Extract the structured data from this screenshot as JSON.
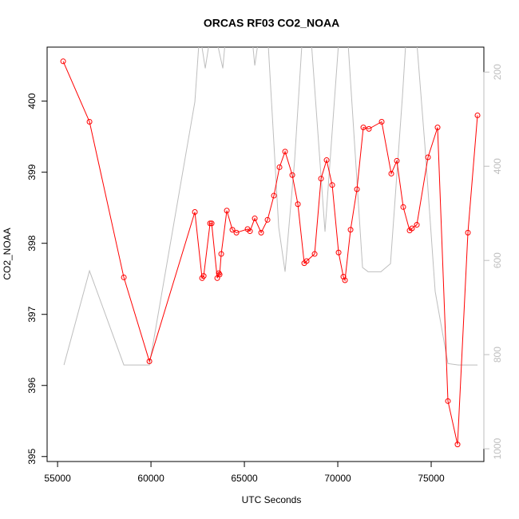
{
  "chart_data": {
    "type": "line",
    "title": "ORCAS RF03 CO2_NOAA",
    "x_label": "UTC Seconds",
    "y_label": "CO2_NOAA",
    "xlim": [
      54440,
      77820
    ],
    "ylim": [
      394.93,
      400.76
    ],
    "y2lim": [
      1027,
      147
    ],
    "xticks": [
      55000,
      60000,
      65000,
      70000,
      75000
    ],
    "yticks": [
      395,
      396,
      397,
      398,
      399,
      400
    ],
    "y2ticks": [
      200,
      400,
      600,
      800,
      1000
    ],
    "series": [
      {
        "color": "#bebebe",
        "axis": "y2",
        "x": [
          55342,
          56709,
          58547,
          59915,
          62350,
          62607,
          62906,
          63205,
          63419,
          63846,
          64017,
          64274,
          65385,
          65556,
          65812,
          66239,
          66838,
          67179,
          67692,
          68120,
          68547,
          69316,
          69744,
          70085,
          70513,
          71325,
          71624,
          72308,
          72821,
          73462,
          73675,
          74188,
          74658,
          75214,
          75897,
          76453,
          77479
        ],
        "values": [
          822,
          622,
          822,
          822,
          263,
          115,
          192,
          115,
          115,
          192,
          115,
          115,
          115,
          186,
          115,
          115,
          530,
          624,
          386,
          115,
          115,
          539,
          302,
          115,
          115,
          615,
          624,
          624,
          607,
          251,
          115,
          115,
          353,
          666,
          819,
          822,
          822
        ]
      },
      {
        "color": "#ff0000",
        "markers": true,
        "x": [
          55299,
          56709,
          58547,
          59915,
          62350,
          62735,
          62821,
          63163,
          63248,
          63547,
          63632,
          63675,
          63761,
          64060,
          64359,
          64573,
          65171,
          65299,
          65556,
          65897,
          66239,
          66581,
          66880,
          67179,
          67564,
          67863,
          68205,
          68333,
          68761,
          69103,
          69402,
          69701,
          70043,
          70299,
          70385,
          70684,
          71026,
          71368,
          71667,
          72350,
          72863,
          73162,
          73504,
          73846,
          73974,
          74231,
          74829,
          75342,
          75897,
          76410,
          76966,
          77479
        ],
        "values": [
          400.56,
          399.71,
          397.52,
          396.34,
          398.44,
          397.51,
          397.54,
          398.28,
          398.28,
          397.51,
          397.58,
          397.56,
          397.85,
          398.46,
          398.19,
          398.15,
          398.2,
          398.17,
          398.35,
          398.15,
          398.33,
          398.67,
          399.07,
          399.29,
          398.96,
          398.55,
          397.72,
          397.75,
          397.85,
          398.91,
          399.17,
          398.82,
          397.87,
          397.53,
          397.48,
          398.19,
          398.76,
          399.63,
          399.61,
          399.71,
          398.98,
          399.16,
          398.51,
          398.18,
          398.21,
          398.26,
          399.21,
          399.63,
          395.78,
          395.17,
          398.15,
          399.8
        ]
      }
    ]
  }
}
